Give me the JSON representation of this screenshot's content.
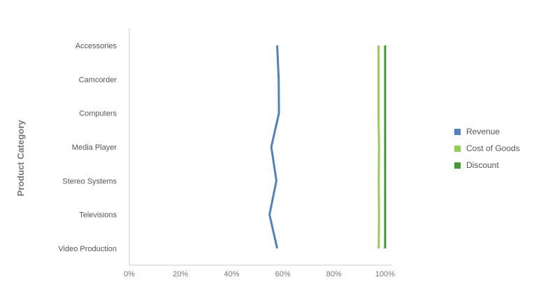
{
  "chart_data": {
    "type": "line",
    "orientation": "horizontal",
    "stacking": "percent",
    "categories": [
      "Accessories",
      "Camcorder",
      "Computers",
      "Media Player",
      "Stereo Systems",
      "Televisions",
      "Video Production"
    ],
    "ylabel": "Product Category",
    "xlabel": "",
    "x_ticks": [
      "0%",
      "20%",
      "40%",
      "60%",
      "80%",
      "100%"
    ],
    "xlim": [
      0,
      100
    ],
    "legend_position": "right",
    "series": [
      {
        "name": "Revenue",
        "color": "#4f81bd",
        "values": [
          57.8,
          58.4,
          58.5,
          55.5,
          57.5,
          54.8,
          57.8
        ]
      },
      {
        "name": "Cost of Goods",
        "color": "#92d050",
        "values": [
          97.4,
          97.4,
          97.4,
          97.6,
          97.5,
          97.6,
          97.5
        ]
      },
      {
        "name": "Discount",
        "color": "#3f9b35",
        "values": [
          100,
          100,
          100,
          100,
          100,
          100,
          100
        ]
      }
    ]
  }
}
